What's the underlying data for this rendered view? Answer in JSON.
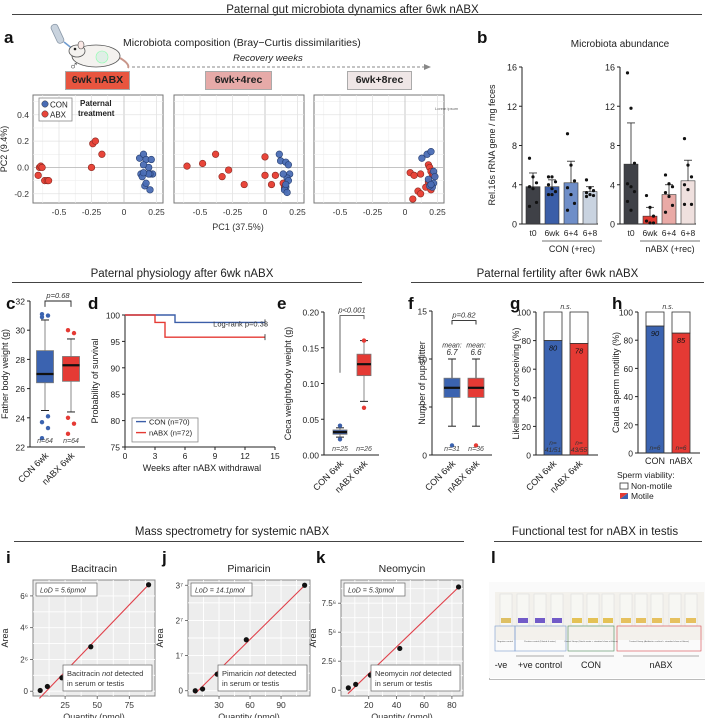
{
  "sections": {
    "top": "Paternal gut microbiota dynamics after 6wk nABX",
    "physiology": "Paternal physiology after 6wk nABX",
    "fertility": "Paternal fertility after 6wk nABX",
    "mass_spec": "Mass spectrometry for systemic nABX",
    "functional": "Functional test for nABX in testis"
  },
  "panel_labels": {
    "a": "a",
    "b": "b",
    "c": "c",
    "d": "d",
    "e": "e",
    "f": "f",
    "g": "g",
    "h": "h",
    "i": "i",
    "j": "j",
    "k": "k",
    "l": "l"
  },
  "panel_a": {
    "heading": "Microbiota composition (Bray−Curtis dissimilarities)",
    "recovery_label": "Recovery weeks",
    "timepoints": [
      {
        "label": "6wk nABX",
        "color": "#e8553f"
      },
      {
        "label": "6wk+4rec",
        "color": "#e6aaa8"
      },
      {
        "label": "6wk+8rec",
        "color": "#efe6e6"
      }
    ],
    "legend_title": "Paternal treatment",
    "legend": [
      {
        "name": "CON",
        "color": "#4a6db5"
      },
      {
        "name": "ABX",
        "color": "#e8453a"
      }
    ],
    "corner_note": "Lorem ipsum",
    "male_symbol": "♂"
  },
  "panel_b": {
    "title": "Microbiota abundance",
    "group_labels": [
      "CON (+rec)",
      "nABX (+rec)"
    ]
  },
  "panel_c": {
    "pvalue": "p=0.68",
    "n_labels": [
      "n=64",
      "n=64"
    ]
  },
  "panel_d": {
    "logrank": "Log-rank p=0.33"
  },
  "panel_e": {
    "pvalue": "p<0.001",
    "n_labels": [
      "n=25",
      "n=26"
    ]
  },
  "panel_f": {
    "pvalue": "p=0.82",
    "mean_label": "mean:",
    "means": [
      "6.7",
      "6.6"
    ],
    "n_labels": [
      "n=31",
      "n=36"
    ]
  },
  "panel_g": {
    "sig": "n.s.",
    "values_text": [
      "80",
      "78"
    ],
    "n_labels": [
      [
        "n=",
        "41/51"
      ],
      [
        "n=",
        "43/55"
      ]
    ]
  },
  "panel_h": {
    "sig": "n.s.",
    "values_text": [
      "90",
      "85"
    ],
    "n_labels": [
      "n=6",
      "n=6"
    ],
    "legend_title": "Sperm viability:",
    "legend": [
      "Non-motile",
      "Motile"
    ]
  },
  "panel_l": {
    "group_labels": [
      "-ve",
      "+ve control",
      "CON",
      "nABX"
    ],
    "box_captions": [
      "Negative control",
      "Positive control (Diluted & water)",
      "Control Group (Sterile water + standard chow at fifteen)",
      "Treated Group (Antibiotics cocktail + standard chow at fifteen)"
    ]
  },
  "chart_data": [
    {
      "id": "a",
      "type": "scatter",
      "title": "Microbiota composition (Bray−Curtis dissimilarities)",
      "xlabel": "PC1 (37.5%)",
      "ylabel": "PC2 (9.4%)",
      "xlim": [
        -0.7,
        0.3
      ],
      "ylim": [
        -0.27,
        0.55
      ],
      "xticks": [
        -0.5,
        -0.25,
        0,
        0.25
      ],
      "yticks": [
        -0.2,
        0.0,
        0.2,
        0.4
      ],
      "grid": true,
      "legend_position": "top-left",
      "facets": [
        {
          "label": "6wk nABX",
          "CON": [
            [
              0.12,
              0.07
            ],
            [
              0.15,
              0.1
            ],
            [
              0.17,
              0.06
            ],
            [
              0.19,
              0.0
            ],
            [
              0.21,
              0.06
            ],
            [
              0.22,
              -0.05
            ],
            [
              0.13,
              -0.05
            ],
            [
              0.14,
              -0.07
            ],
            [
              0.15,
              0.02
            ],
            [
              0.2,
              -0.05
            ],
            [
              0.19,
              -0.05
            ],
            [
              0.16,
              -0.14
            ],
            [
              0.17,
              -0.12
            ],
            [
              0.2,
              -0.17
            ],
            [
              0.15,
              -0.04
            ]
          ],
          "ABX": [
            [
              -0.65,
              0.0
            ],
            [
              -0.64,
              0.01
            ],
            [
              -0.63,
              0.0
            ],
            [
              -0.66,
              -0.06
            ],
            [
              -0.61,
              -0.1
            ],
            [
              -0.59,
              -0.1
            ],
            [
              -0.58,
              -0.1
            ],
            [
              -0.24,
              0.18
            ],
            [
              -0.22,
              0.2
            ],
            [
              -0.17,
              0.1
            ],
            [
              -0.25,
              0.0
            ]
          ]
        },
        {
          "label": "6wk+4rec",
          "CON": [
            [
              0.11,
              0.1
            ],
            [
              0.12,
              0.05
            ],
            [
              0.16,
              0.04
            ],
            [
              0.18,
              0.02
            ],
            [
              0.19,
              -0.05
            ],
            [
              0.17,
              -0.08
            ],
            [
              0.18,
              -0.1
            ],
            [
              0.16,
              -0.15
            ],
            [
              0.15,
              -0.17
            ],
            [
              0.17,
              -0.19
            ],
            [
              0.14,
              -0.05
            ],
            [
              0.16,
              -0.13
            ]
          ],
          "ABX": [
            [
              -0.6,
              0.01
            ],
            [
              -0.48,
              0.03
            ],
            [
              -0.38,
              0.1
            ],
            [
              -0.33,
              -0.07
            ],
            [
              -0.28,
              -0.02
            ],
            [
              -0.16,
              -0.13
            ],
            [
              0.0,
              0.08
            ],
            [
              0.0,
              -0.06
            ],
            [
              0.05,
              -0.13
            ],
            [
              0.08,
              -0.06
            ],
            [
              0.14,
              -0.12
            ],
            [
              0.15,
              -0.15
            ]
          ]
        },
        {
          "label": "6wk+8rec",
          "CON": [
            [
              0.13,
              0.07
            ],
            [
              0.17,
              0.1
            ],
            [
              0.2,
              0.12
            ],
            [
              0.22,
              -0.03
            ],
            [
              0.23,
              -0.07
            ],
            [
              0.18,
              -0.09
            ],
            [
              0.22,
              -0.12
            ],
            [
              0.21,
              -0.15
            ],
            [
              0.19,
              -0.14
            ],
            [
              0.2,
              -0.13
            ]
          ],
          "ABX": [
            [
              0.04,
              -0.04
            ],
            [
              0.07,
              -0.06
            ],
            [
              0.12,
              -0.05
            ],
            [
              0.18,
              0.02
            ],
            [
              0.19,
              0.0
            ],
            [
              0.2,
              -0.03
            ],
            [
              0.21,
              -0.05
            ],
            [
              0.22,
              -0.06
            ],
            [
              0.18,
              -0.11
            ],
            [
              0.16,
              -0.15
            ],
            [
              0.1,
              -0.18
            ],
            [
              0.12,
              -0.2
            ],
            [
              0.06,
              -0.24
            ],
            [
              0.2,
              -0.17
            ]
          ]
        }
      ]
    },
    {
      "id": "b",
      "type": "bar",
      "title": "Microbiota abundance",
      "ylabel": "Rel.16s rRNA gene / mg feces",
      "ylim": [
        0,
        16
      ],
      "yticks": [
        0,
        4,
        8,
        12,
        16
      ],
      "groups": [
        {
          "name": "CON (+rec)",
          "categories": [
            "t0",
            "6wk",
            "6+4",
            "6+8"
          ],
          "values": [
            3.8,
            3.8,
            4.2,
            3.3
          ],
          "errors": [
            1.4,
            0.7,
            2.2,
            0.5
          ],
          "colors": [
            "#3f4147",
            "#3b5ea8",
            "#6f8ec8",
            "#c9d3e0"
          ],
          "points": [
            [
              6.7,
              4.8,
              4.2,
              3.8,
              3.6,
              2.2,
              1.8
            ],
            [
              4.8,
              4.8,
              4.3,
              4.0,
              3.6,
              3.3,
              3.0,
              3.0
            ],
            [
              9.2,
              6.0,
              4.4,
              3.7,
              3.0,
              2.1,
              1.4
            ],
            [
              4.5,
              3.7,
              3.4,
              3.2,
              3.0,
              2.9,
              2.8
            ]
          ]
        },
        {
          "name": "nABX (+rec)",
          "categories": [
            "t0",
            "6wk",
            "6+4",
            "6+8"
          ],
          "values": [
            6.1,
            0.8,
            3.0,
            4.4
          ],
          "errors": [
            4.2,
            0.9,
            1.0,
            2.1
          ],
          "colors": [
            "#3f4147",
            "#e23b33",
            "#e9aaa6",
            "#efe0de"
          ],
          "points": [
            [
              15.4,
              11.8,
              6.2,
              4.1,
              3.8,
              3.3,
              2.3,
              1.4
            ],
            [
              2.9,
              1.7,
              0.8,
              0.3,
              0.1,
              0.1
            ],
            [
              5.0,
              4.1,
              3.8,
              3.2,
              2.8,
              1.9,
              1.2
            ],
            [
              8.7,
              6.0,
              4.8,
              4.0,
              3.5,
              2.0,
              2.0
            ]
          ]
        }
      ]
    },
    {
      "id": "c",
      "type": "box",
      "ylabel": "Father body weight (g)",
      "ylim": [
        22,
        32
      ],
      "yticks": [
        22,
        24,
        26,
        28,
        30,
        32
      ],
      "categories": [
        "CON 6wk",
        "nABX 6wk"
      ],
      "series": [
        {
          "name": "CON 6wk",
          "color": "#3b63b0",
          "q1": 26.4,
          "median": 27.0,
          "q3": 28.6,
          "whisker_low": 24.5,
          "whisker_high": 30.7,
          "outliers": [
            31.1,
            31.0,
            30.9,
            24.1,
            23.7,
            23.3,
            22.6
          ]
        },
        {
          "name": "nABX 6wk",
          "color": "#e53a34",
          "q1": 26.5,
          "median": 27.6,
          "q3": 28.2,
          "whisker_low": 24.4,
          "whisker_high": 29.4,
          "outliers": [
            30.0,
            29.8,
            24.0,
            23.6,
            22.9
          ]
        }
      ],
      "pvalue": "p=0.68",
      "n": [
        64,
        64
      ]
    },
    {
      "id": "d",
      "type": "line",
      "xlabel": "Weeks after nABX withdrawal",
      "ylabel": "Probability of survival",
      "xlim": [
        0,
        15
      ],
      "ylim": [
        75,
        100
      ],
      "xticks": [
        0,
        3,
        6,
        9,
        12,
        15
      ],
      "yticks": [
        75,
        80,
        85,
        90,
        95,
        100
      ],
      "legend_position": "bottom-left",
      "series": [
        {
          "name": "CON (n=70)",
          "color": "#3b5ea8",
          "steps": [
            [
              0,
              100
            ],
            [
              5,
              100
            ],
            [
              5,
              98.6
            ],
            [
              14,
              98.6
            ]
          ]
        },
        {
          "name": "nABX (n=72)",
          "color": "#e53a34",
          "steps": [
            [
              0,
              100
            ],
            [
              3,
              100
            ],
            [
              3,
              98.6
            ],
            [
              4,
              98.6
            ],
            [
              4,
              95.8
            ],
            [
              14,
              95.8
            ]
          ]
        }
      ],
      "annotation": "Log-rank p=0.33"
    },
    {
      "id": "e",
      "type": "box",
      "ylabel": "Ceca weight/body weight (g)",
      "ylim": [
        0,
        0.2
      ],
      "yticks": [
        0.0,
        0.05,
        0.1,
        0.15,
        0.2
      ],
      "categories": [
        "CON 6wk",
        "nABX 6wk"
      ],
      "series": [
        {
          "name": "CON 6wk",
          "color": "#3b5ea8",
          "q1": 0.029,
          "median": 0.032,
          "q3": 0.035,
          "whisker_low": 0.025,
          "whisker_high": 0.038,
          "outliers": [
            0.041,
            0.022
          ]
        },
        {
          "name": "nABX 6wk",
          "color": "#e53a34",
          "q1": 0.111,
          "median": 0.127,
          "q3": 0.141,
          "whisker_low": 0.075,
          "whisker_high": 0.16,
          "outliers": [
            0.16,
            0.066
          ]
        }
      ],
      "pvalue": "p<0.001",
      "n": [
        25,
        26
      ]
    },
    {
      "id": "f",
      "type": "box",
      "ylabel": "Number of pups/litter",
      "ylim": [
        0,
        15
      ],
      "yticks": [
        0,
        5,
        10,
        15
      ],
      "categories": [
        "CON 6wk",
        "nABX 6wk"
      ],
      "series": [
        {
          "name": "CON 6wk",
          "color": "#3b63b0",
          "q1": 6,
          "median": 7,
          "q3": 8,
          "whisker_low": 3,
          "whisker_high": 10,
          "outliers": [
            1
          ],
          "mean": 6.7
        },
        {
          "name": "nABX 6wk",
          "color": "#e53a34",
          "q1": 6,
          "median": 7,
          "q3": 8,
          "whisker_low": 3,
          "whisker_high": 10,
          "outliers": [
            1
          ],
          "mean": 6.6
        }
      ],
      "pvalue": "p=0.82",
      "n": [
        31,
        36
      ]
    },
    {
      "id": "g",
      "type": "bar",
      "stacked": true,
      "ylabel": "Likelihood of conceiving (%)",
      "ylim": [
        0,
        100
      ],
      "yticks": [
        0,
        20,
        40,
        60,
        80,
        100
      ],
      "categories": [
        "CON 6wk",
        "nABX 6wk"
      ],
      "values": [
        80,
        78
      ],
      "colors": [
        "#3b63b0",
        "#e53a34"
      ],
      "n": [
        "41/51",
        "43/55"
      ],
      "annotation": "n.s."
    },
    {
      "id": "h",
      "type": "bar",
      "stacked": true,
      "ylabel": "Cauda sperm motility (%)",
      "ylim": [
        0,
        100
      ],
      "yticks": [
        0,
        20,
        40,
        60,
        80,
        100
      ],
      "categories": [
        "CON",
        "nABX"
      ],
      "values": [
        90,
        85
      ],
      "colors": [
        "#3b63b0",
        "#e53a34"
      ],
      "n": [
        6,
        6
      ],
      "legend": [
        "Non-motile",
        "Motile"
      ],
      "legend_title": "Sperm viability:",
      "annotation": "n.s."
    },
    {
      "id": "i",
      "type": "scatter",
      "title": "Bacitracin",
      "xlabel": "Quantity (pmol)",
      "ylabel": "Area",
      "xlim": [
        0,
        95
      ],
      "ylim": [
        -0.3,
        7
      ],
      "xticks": [
        25,
        50,
        75
      ],
      "yticks": [
        0,
        2,
        4,
        6
      ],
      "ytick_labels": [
        "0",
        "2⁶",
        "4⁶",
        "6⁶"
      ],
      "x": [
        5.6,
        11.2,
        22.5,
        45,
        90
      ],
      "y": [
        0.05,
        0.3,
        0.85,
        2.8,
        6.7
      ],
      "fit": [
        [
          5,
          -0.45
        ],
        [
          90,
          6.7
        ]
      ],
      "lod": "LoD = 5.6pmol",
      "note": [
        "Bacitracin ",
        "not",
        " detected",
        "in serum or testis"
      ]
    },
    {
      "id": "j",
      "type": "scatter",
      "title": "Pimaricin",
      "xlabel": "Quantity (pmol)",
      "ylabel": "Area",
      "xlim": [
        0,
        118
      ],
      "ylim": [
        -0.15,
        3.15
      ],
      "xticks": [
        30,
        60,
        90
      ],
      "yticks": [
        0,
        1,
        2,
        3
      ],
      "ytick_labels": [
        "0",
        "1⁷",
        "2⁷",
        "3⁷"
      ],
      "x": [
        7,
        14.1,
        28.2,
        56.4,
        112.8
      ],
      "y": [
        0.0,
        0.05,
        0.47,
        1.45,
        3.0
      ],
      "fit": [
        [
          7,
          -0.08
        ],
        [
          113,
          3.0
        ]
      ],
      "lod": "LoD = 14.1pmol",
      "note": [
        "Pimaricin ",
        "not",
        " detected",
        "in serum or testis"
      ]
    },
    {
      "id": "k",
      "type": "scatter",
      "title": "Neomycin",
      "xlabel": "Quantity (pmol)",
      "ylabel": "Area",
      "xlim": [
        0,
        88
      ],
      "ylim": [
        -0.5,
        9.5
      ],
      "xticks": [
        20,
        40,
        60,
        80
      ],
      "yticks": [
        0,
        2.5,
        5,
        7.5
      ],
      "ytick_labels": [
        "0",
        "2.5⁶",
        "5⁶",
        "7.5⁶"
      ],
      "x": [
        5.3,
        10.6,
        21.2,
        42.4,
        84.8
      ],
      "y": [
        0.2,
        0.5,
        1.3,
        3.6,
        8.9
      ],
      "fit": [
        [
          5,
          -0.3
        ],
        [
          85,
          8.9
        ]
      ],
      "lod": "LoD = 5.3pmol",
      "note": [
        "Neomycin ",
        "not",
        " detected",
        "in serum or testis"
      ]
    }
  ]
}
